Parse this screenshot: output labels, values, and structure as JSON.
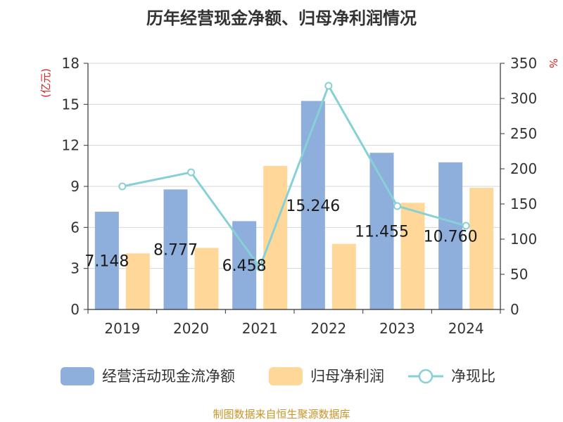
{
  "title": "历年经营现金净额、归母净利润情况",
  "source": "制图数据来自恒生聚源数据库",
  "chart_data": {
    "type": "bar",
    "categories": [
      "2019",
      "2020",
      "2021",
      "2022",
      "2023",
      "2024"
    ],
    "left_axis": {
      "unit": "(亿元)",
      "min": 0,
      "max": 18,
      "ticks": [
        0,
        3,
        6,
        9,
        12,
        15,
        18
      ]
    },
    "right_axis": {
      "unit": "%",
      "min": 0,
      "max": 350,
      "ticks": [
        0,
        50,
        100,
        150,
        200,
        250,
        300,
        350
      ]
    },
    "grid": true,
    "legend_position": "bottom",
    "series": [
      {
        "name": "经营活动现金流净额",
        "kind": "bar",
        "axis": "left",
        "color": "#8eaedb",
        "values": [
          7.148,
          8.777,
          6.458,
          15.246,
          11.455,
          10.76
        ],
        "labels": [
          "7.148",
          "8.777",
          "6.458",
          "15.246",
          "11.455",
          "10.760"
        ]
      },
      {
        "name": "归母净利润",
        "kind": "bar",
        "axis": "left",
        "color": "#ffd899",
        "values": [
          4.1,
          4.5,
          10.5,
          4.8,
          7.8,
          8.9
        ]
      },
      {
        "name": "净现比",
        "kind": "line",
        "axis": "right",
        "color": "#86d0d6",
        "values": [
          175,
          195,
          60,
          318,
          147,
          119
        ]
      }
    ]
  }
}
